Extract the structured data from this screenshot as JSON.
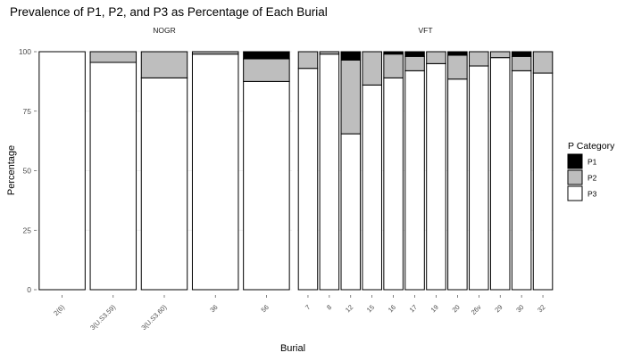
{
  "title": "Prevalence of P1, P2, and P3 as Percentage of Each Burial",
  "chart_data": {
    "type": "bar",
    "stacked": true,
    "title": "Prevalence of P1, P2, and P3 as Percentage of Each Burial",
    "xlabel": "Burial",
    "ylabel": "Percentage",
    "ylim": [
      0,
      100
    ],
    "yticks": [
      0,
      25,
      50,
      75,
      100
    ],
    "legend": {
      "title": "P Category",
      "position": "right",
      "entries": [
        {
          "name": "P1",
          "color": "#000000"
        },
        {
          "name": "P2",
          "color": "#bebebe"
        },
        {
          "name": "P3",
          "color": "#ffffff"
        }
      ]
    },
    "panels": [
      {
        "name": "NOGR",
        "categories": [
          "2(6)",
          "3(U.S3.59)",
          "3(U.S3.60)",
          "36",
          "56"
        ],
        "series": [
          {
            "name": "P1",
            "values": [
              0,
              0,
              0,
              0,
              3
            ]
          },
          {
            "name": "P2",
            "values": [
              0,
              4.5,
              11,
              1,
              9.5
            ]
          },
          {
            "name": "P3",
            "values": [
              100,
              95.5,
              89,
              99,
              87.5
            ]
          }
        ]
      },
      {
        "name": "VFT",
        "categories": [
          "7",
          "8",
          "12",
          "15",
          "16",
          "17",
          "19",
          "20",
          "26v",
          "29",
          "30",
          "32"
        ],
        "series": [
          {
            "name": "P1",
            "values": [
              0,
              0,
              3.5,
              0,
              1,
              2,
              0,
              1.5,
              0,
              0,
              2,
              0
            ]
          },
          {
            "name": "P2",
            "values": [
              7,
              1,
              31,
              14,
              10,
              6,
              5,
              10,
              6,
              2.5,
              6,
              9
            ]
          },
          {
            "name": "P3",
            "values": [
              93,
              99,
              65.5,
              86,
              89,
              92,
              95,
              88.5,
              94,
              97.5,
              92,
              91
            ]
          }
        ]
      }
    ]
  }
}
